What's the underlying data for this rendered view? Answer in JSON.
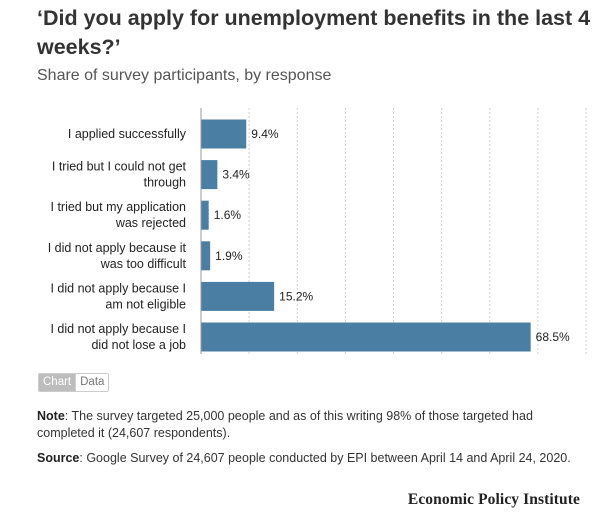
{
  "title": "‘Did you apply for unemployment benefits in the last 4 weeks?’",
  "subtitle": "Share of survey participants, by response",
  "chart_data": {
    "type": "bar",
    "orientation": "horizontal",
    "categories": [
      [
        "I applied successfully"
      ],
      [
        "I tried but I could not get",
        "through"
      ],
      [
        "I tried but my application",
        "was rejected"
      ],
      [
        "I did not apply because it",
        "was too difficult"
      ],
      [
        "I did not apply because I",
        "am not eligible"
      ],
      [
        "I did not apply because I",
        "did not lose a job"
      ]
    ],
    "values": [
      9.4,
      3.4,
      1.6,
      1.9,
      15.2,
      68.5
    ],
    "value_labels": [
      "9.4%",
      "3.4%",
      "1.6%",
      "1.9%",
      "15.2%",
      "68.5%"
    ],
    "xlim": [
      0,
      80
    ],
    "grid": true,
    "bar_color": "#4a7fa3"
  },
  "toggle": {
    "chart_label": "Chart",
    "data_label": "Data"
  },
  "notes": {
    "note_label": "Note",
    "note_text": ": The survey targeted 25,000 people and as of this writing 98% of those targeted had completed it (24,607 respondents).",
    "source_label": "Source",
    "source_text": ": Google Survey of 24,607 people conducted by EPI between April 14 and April 24, 2020."
  },
  "brand": "Economic Policy Institute"
}
